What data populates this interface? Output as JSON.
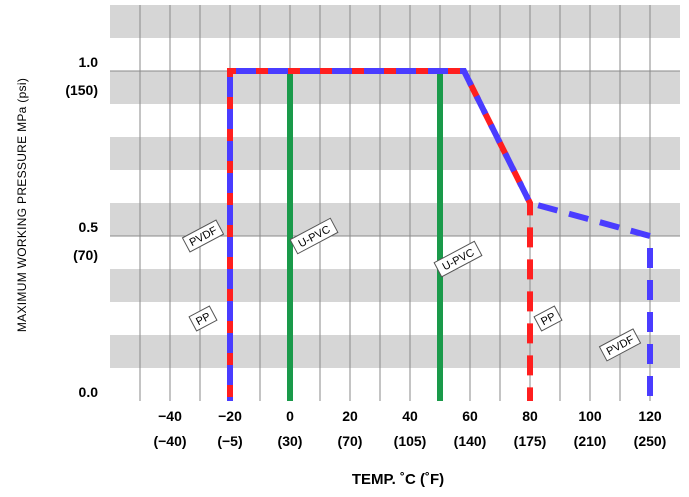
{
  "chart_data": {
    "type": "line",
    "xlabel": "TEMP. ˚C (˚F)",
    "ylabel": "MAXIMUM WORKING PRESSURE   MPa (psi)",
    "xlim": [
      -60,
      130
    ],
    "ylim": [
      0,
      1.2
    ],
    "x_ticks": [
      {
        "c": -40,
        "label": "−40",
        "f": "(−40)"
      },
      {
        "c": -20,
        "label": "−20",
        "f": "(−5)"
      },
      {
        "c": 0,
        "label": "0",
        "f": "(30)"
      },
      {
        "c": 20,
        "label": "20",
        "f": "(70)"
      },
      {
        "c": 40,
        "label": "40",
        "f": "(105)"
      },
      {
        "c": 60,
        "label": "60",
        "f": "(140)"
      },
      {
        "c": 80,
        "label": "80",
        "f": "(175)"
      },
      {
        "c": 100,
        "label": "100",
        "f": "(210)"
      },
      {
        "c": 120,
        "label": "120",
        "f": "(250)"
      }
    ],
    "y_ticks": [
      {
        "v": 1.0,
        "label": "1.0",
        "psi": "(150)"
      },
      {
        "v": 0.5,
        "label": "0.5",
        "psi": "(70)"
      },
      {
        "v": 0.0,
        "label": "0.0",
        "psi": ""
      }
    ],
    "grid": true,
    "series": [
      {
        "name": "PP",
        "color": "#ff1f1f",
        "dash": "dashed",
        "x": [
          -20,
          -20,
          58,
          80,
          80
        ],
        "y": [
          0,
          1.0,
          1.0,
          0.6,
          0
        ]
      },
      {
        "name": "PVDF",
        "color": "#4a3cff",
        "dash": "dashed",
        "x": [
          -20,
          -20,
          58,
          80,
          120,
          120
        ],
        "y": [
          0,
          1.0,
          1.0,
          0.6,
          0.5,
          0
        ]
      },
      {
        "name": "U-PVC",
        "color": "#1a9a4a",
        "dash": "solid",
        "x": [
          0,
          0,
          50,
          50
        ],
        "y": [
          0,
          1.0,
          1.0,
          0
        ]
      }
    ],
    "annotations": [
      {
        "text": "PVDF",
        "x": -29,
        "y": 0.5,
        "rotate": -28
      },
      {
        "text": "PP",
        "x": -29,
        "y": 0.25,
        "rotate": -28
      },
      {
        "text": "U-PVC",
        "x": 8,
        "y": 0.5,
        "rotate": -28
      },
      {
        "text": "U-PVC",
        "x": 56,
        "y": 0.43,
        "rotate": -28
      },
      {
        "text": "PP",
        "x": 86,
        "y": 0.25,
        "rotate": -28
      },
      {
        "text": "PVDF",
        "x": 110,
        "y": 0.17,
        "rotate": -28
      }
    ]
  }
}
